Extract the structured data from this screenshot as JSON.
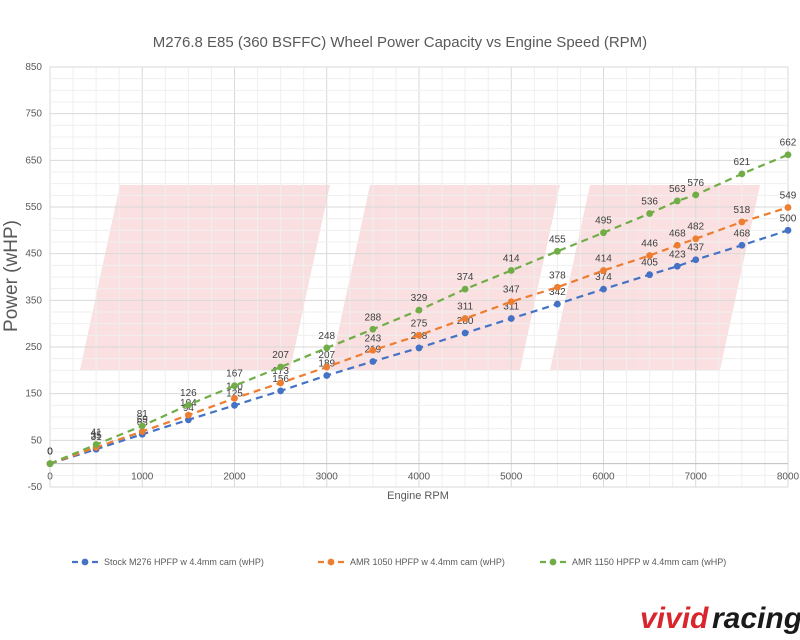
{
  "brand": {
    "part1": "vivid",
    "part2": "racing"
  },
  "chart_data": {
    "type": "line",
    "title": "M276.8 E85 (360 BSFFC) Wheel Power Capacity vs Engine Speed (RPM)",
    "xlabel": "Engine RPM",
    "ylabel": "Power (wHP)",
    "xlim": [
      0,
      8000
    ],
    "ylim": [
      -50,
      850
    ],
    "x_ticks": [
      0,
      1000,
      2000,
      3000,
      4000,
      5000,
      6000,
      7000,
      8000
    ],
    "y_ticks": [
      -50,
      50,
      150,
      250,
      350,
      450,
      550,
      650,
      750,
      850
    ],
    "grid": true,
    "legend_position": "bottom",
    "series": [
      {
        "name": "Stock M276 HPFP w 4.4mm cam (wHP)",
        "color": "#4472c4",
        "x": [
          0,
          500,
          1000,
          1500,
          2000,
          2500,
          3000,
          3500,
          4000,
          4500,
          5000,
          5500,
          6000,
          6500,
          6800,
          7000,
          7500,
          8000
        ],
        "y": [
          0,
          31,
          63,
          94,
          125,
          156,
          189,
          219,
          248,
          280,
          311,
          342,
          374,
          405,
          423,
          437,
          468,
          500
        ]
      },
      {
        "name": "AMR 1050 HPFP w 4.4mm cam (wHP)",
        "color": "#ed7d31",
        "x": [
          0,
          500,
          1000,
          1500,
          2000,
          2500,
          3000,
          3500,
          4000,
          4500,
          5000,
          5500,
          6000,
          6500,
          6800,
          7000,
          7500,
          8000
        ],
        "y": [
          0,
          35,
          69,
          104,
          140,
          173,
          207,
          243,
          275,
          311,
          347,
          378,
          414,
          446,
          468,
          482,
          518,
          549
        ]
      },
      {
        "name": "AMR 1150 HPFP w 4.4mm cam (wHP)",
        "color": "#70ad47",
        "x": [
          0,
          500,
          1000,
          1500,
          2000,
          2500,
          3000,
          3500,
          4000,
          4500,
          5000,
          5500,
          6000,
          6500,
          6800,
          7000,
          7500,
          8000
        ],
        "y": [
          0,
          41,
          81,
          126,
          167,
          207,
          248,
          288,
          329,
          374,
          414,
          455,
          495,
          536,
          563,
          576,
          621,
          662
        ]
      }
    ]
  }
}
